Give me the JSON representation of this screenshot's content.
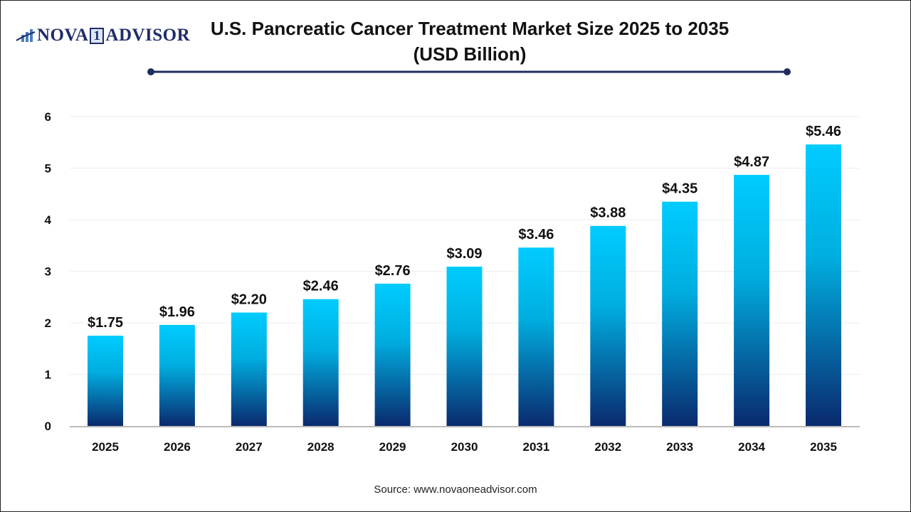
{
  "logo_text": "NOVA 1 ADVISOR",
  "logo": {
    "left": "NOVA",
    "mark": "1",
    "right": "ADVISOR"
  },
  "title_line1": "U.S. Pancreatic Cancer Treatment Market Size 2025 to 2035",
  "title_line2": "(USD Billion)",
  "source": "Source: www.novaoneadvisor.com",
  "colors": {
    "bar_top": "#00ccff",
    "bar_bottom": "#0a2a6e",
    "title_rule": "#1f2d5c"
  },
  "chart_data": {
    "type": "bar",
    "title": "U.S. Pancreatic Cancer Treatment Market Size 2025 to 2035 (USD Billion)",
    "categories": [
      "2025",
      "2026",
      "2027",
      "2028",
      "2029",
      "2030",
      "2031",
      "2032",
      "2033",
      "2034",
      "2035"
    ],
    "values": [
      1.75,
      1.96,
      2.2,
      2.46,
      2.76,
      3.09,
      3.46,
      3.88,
      4.35,
      4.87,
      5.46
    ],
    "data_labels": [
      "$1.75",
      "$1.96",
      "$2.20",
      "$2.46",
      "$2.76",
      "$3.09",
      "$3.46",
      "$3.88",
      "$4.35",
      "$4.87",
      "$5.46"
    ],
    "yticks": [
      "0",
      "1",
      "2",
      "3",
      "4",
      "5",
      "6"
    ],
    "ylim": [
      0,
      6
    ],
    "xlabel": "",
    "ylabel": "",
    "grid": true,
    "legend": "none"
  }
}
